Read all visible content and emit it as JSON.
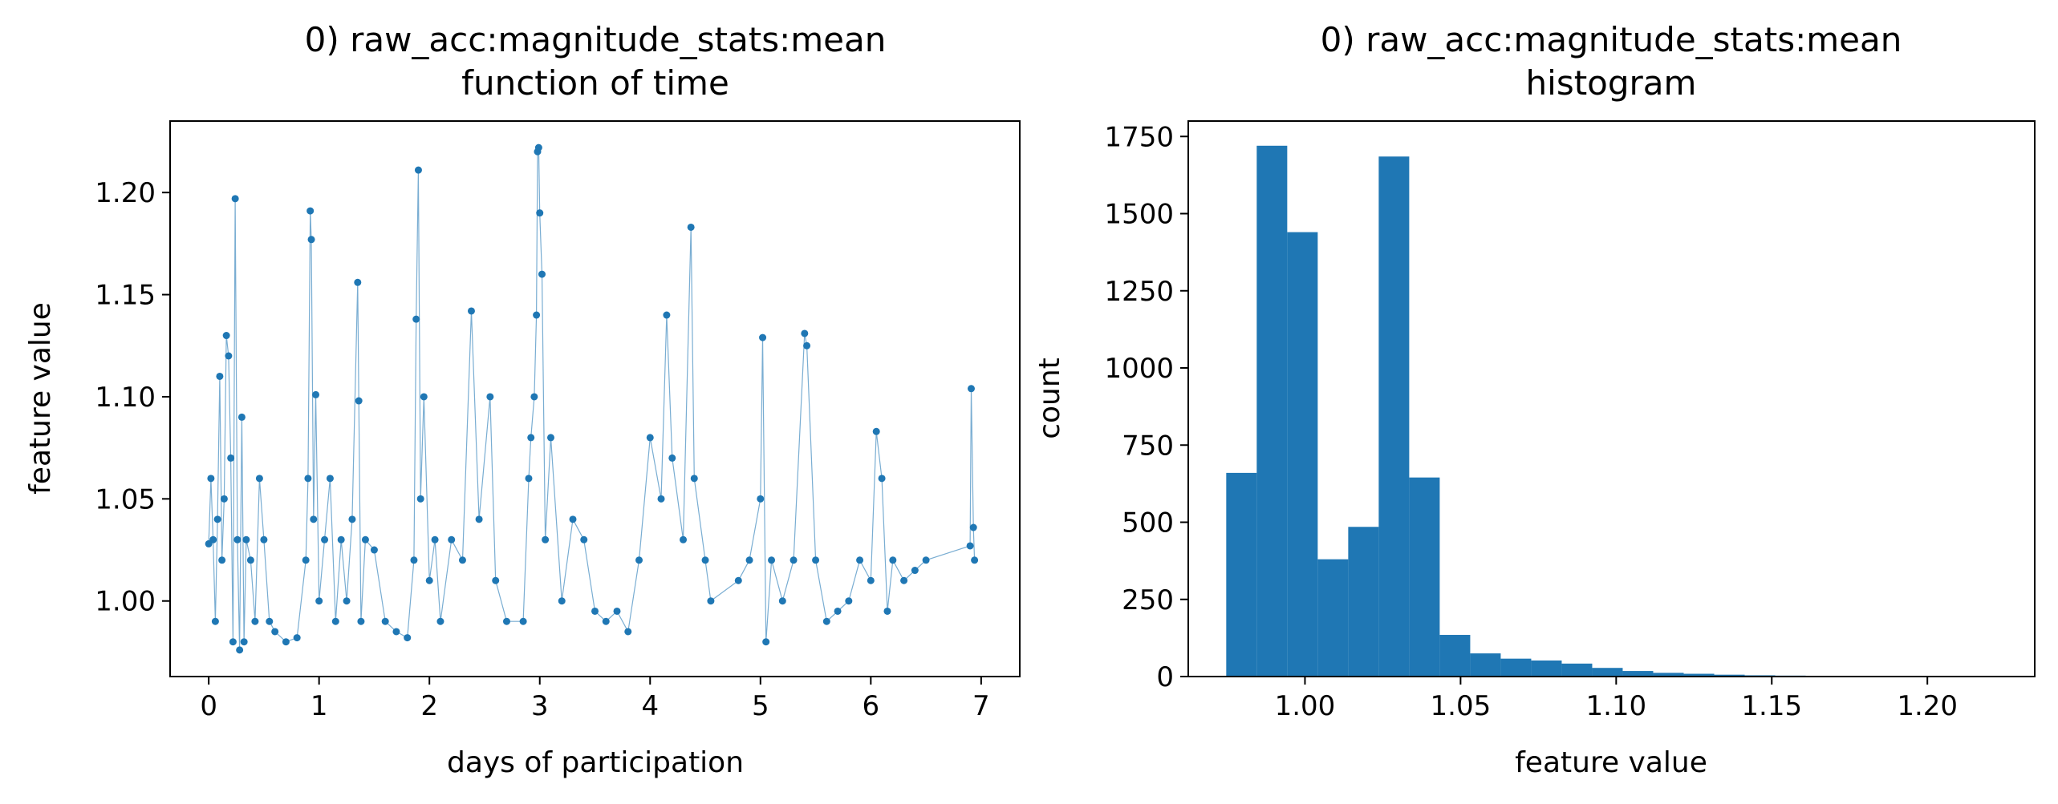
{
  "chart_data": [
    {
      "type": "scatter",
      "title": "0) raw_acc:magnitude_stats:mean",
      "subtitle": "function of time",
      "xlabel": "days of participation",
      "ylabel": "feature value",
      "xlim": [
        -0.35,
        7.35
      ],
      "ylim": [
        0.963,
        1.235
      ],
      "xticks": [
        0,
        1,
        2,
        3,
        4,
        5,
        6,
        7
      ],
      "xtick_labels": [
        "0",
        "1",
        "2",
        "3",
        "4",
        "5",
        "6",
        "7"
      ],
      "yticks": [
        1.0,
        1.05,
        1.1,
        1.15,
        1.2
      ],
      "ytick_labels": [
        "1.00",
        "1.05",
        "1.10",
        "1.15",
        "1.20"
      ],
      "color": "#1f77b4",
      "grid": false,
      "series": [
        {
          "style": "markers with thin connecting line",
          "points": [
            [
              0.0,
              1.028
            ],
            [
              0.02,
              1.06
            ],
            [
              0.04,
              1.03
            ],
            [
              0.06,
              0.99
            ],
            [
              0.08,
              1.04
            ],
            [
              0.1,
              1.11
            ],
            [
              0.12,
              1.02
            ],
            [
              0.14,
              1.05
            ],
            [
              0.16,
              1.13
            ],
            [
              0.18,
              1.12
            ],
            [
              0.2,
              1.07
            ],
            [
              0.22,
              0.98
            ],
            [
              0.24,
              1.197
            ],
            [
              0.26,
              1.03
            ],
            [
              0.28,
              0.976
            ],
            [
              0.3,
              1.09
            ],
            [
              0.32,
              0.98
            ],
            [
              0.34,
              1.03
            ],
            [
              0.38,
              1.02
            ],
            [
              0.42,
              0.99
            ],
            [
              0.46,
              1.06
            ],
            [
              0.5,
              1.03
            ],
            [
              0.55,
              0.99
            ],
            [
              0.6,
              0.985
            ],
            [
              0.7,
              0.98
            ],
            [
              0.8,
              0.982
            ],
            [
              0.88,
              1.02
            ],
            [
              0.9,
              1.06
            ],
            [
              0.92,
              1.191
            ],
            [
              0.93,
              1.177
            ],
            [
              0.95,
              1.04
            ],
            [
              0.97,
              1.101
            ],
            [
              1.0,
              1.0
            ],
            [
              1.05,
              1.03
            ],
            [
              1.1,
              1.06
            ],
            [
              1.15,
              0.99
            ],
            [
              1.2,
              1.03
            ],
            [
              1.25,
              1.0
            ],
            [
              1.3,
              1.04
            ],
            [
              1.35,
              1.156
            ],
            [
              1.36,
              1.098
            ],
            [
              1.38,
              0.99
            ],
            [
              1.42,
              1.03
            ],
            [
              1.5,
              1.025
            ],
            [
              1.6,
              0.99
            ],
            [
              1.7,
              0.985
            ],
            [
              1.8,
              0.982
            ],
            [
              1.86,
              1.02
            ],
            [
              1.88,
              1.138
            ],
            [
              1.9,
              1.211
            ],
            [
              1.92,
              1.05
            ],
            [
              1.95,
              1.1
            ],
            [
              2.0,
              1.01
            ],
            [
              2.05,
              1.03
            ],
            [
              2.1,
              0.99
            ],
            [
              2.2,
              1.03
            ],
            [
              2.3,
              1.02
            ],
            [
              2.38,
              1.142
            ],
            [
              2.45,
              1.04
            ],
            [
              2.55,
              1.1
            ],
            [
              2.6,
              1.01
            ],
            [
              2.7,
              0.99
            ],
            [
              2.85,
              0.99
            ],
            [
              2.9,
              1.06
            ],
            [
              2.92,
              1.08
            ],
            [
              2.95,
              1.1
            ],
            [
              2.97,
              1.14
            ],
            [
              2.98,
              1.22
            ],
            [
              2.99,
              1.222
            ],
            [
              3.0,
              1.19
            ],
            [
              3.02,
              1.16
            ],
            [
              3.05,
              1.03
            ],
            [
              3.1,
              1.08
            ],
            [
              3.2,
              1.0
            ],
            [
              3.3,
              1.04
            ],
            [
              3.4,
              1.03
            ],
            [
              3.5,
              0.995
            ],
            [
              3.6,
              0.99
            ],
            [
              3.7,
              0.995
            ],
            [
              3.8,
              0.985
            ],
            [
              3.9,
              1.02
            ],
            [
              4.0,
              1.08
            ],
            [
              4.1,
              1.05
            ],
            [
              4.15,
              1.14
            ],
            [
              4.2,
              1.07
            ],
            [
              4.3,
              1.03
            ],
            [
              4.37,
              1.183
            ],
            [
              4.4,
              1.06
            ],
            [
              4.5,
              1.02
            ],
            [
              4.55,
              1.0
            ],
            [
              4.8,
              1.01
            ],
            [
              4.9,
              1.02
            ],
            [
              5.0,
              1.05
            ],
            [
              5.02,
              1.129
            ],
            [
              5.05,
              0.98
            ],
            [
              5.1,
              1.02
            ],
            [
              5.2,
              1.0
            ],
            [
              5.3,
              1.02
            ],
            [
              5.4,
              1.131
            ],
            [
              5.42,
              1.125
            ],
            [
              5.5,
              1.02
            ],
            [
              5.6,
              0.99
            ],
            [
              5.7,
              0.995
            ],
            [
              5.8,
              1.0
            ],
            [
              5.9,
              1.02
            ],
            [
              6.0,
              1.01
            ],
            [
              6.05,
              1.083
            ],
            [
              6.1,
              1.06
            ],
            [
              6.15,
              0.995
            ],
            [
              6.2,
              1.02
            ],
            [
              6.3,
              1.01
            ],
            [
              6.4,
              1.015
            ],
            [
              6.5,
              1.02
            ],
            [
              6.9,
              1.027
            ],
            [
              6.91,
              1.104
            ],
            [
              6.93,
              1.036
            ],
            [
              6.94,
              1.02
            ]
          ]
        }
      ]
    },
    {
      "type": "bar",
      "title": "0) raw_acc:magnitude_stats:mean",
      "subtitle": "histogram",
      "xlabel": "feature value",
      "ylabel": "count",
      "xlim": [
        0.9625,
        1.2345
      ],
      "ylim": [
        0,
        1800
      ],
      "xticks": [
        1.0,
        1.05,
        1.1,
        1.15,
        1.2
      ],
      "xtick_labels": [
        "1.00",
        "1.05",
        "1.10",
        "1.15",
        "1.20"
      ],
      "yticks": [
        0,
        250,
        500,
        750,
        1000,
        1250,
        1500,
        1750
      ],
      "ytick_labels": [
        "0",
        "250",
        "500",
        "750",
        "1000",
        "1250",
        "1500",
        "1750"
      ],
      "color": "#1f77b4",
      "grid": false,
      "bin_edges": [
        0.9747,
        0.9845,
        0.9943,
        1.0041,
        1.0139,
        1.0237,
        1.0335,
        1.0433,
        1.0531,
        1.0629,
        1.0727,
        1.0825,
        1.0923,
        1.1021,
        1.1119,
        1.1217,
        1.1315,
        1.1413,
        1.1511,
        1.1609,
        1.1707,
        1.1805,
        1.1903,
        1.2001,
        1.2099,
        1.2197
      ],
      "values": [
        660,
        1720,
        1440,
        380,
        485,
        1685,
        645,
        135,
        75,
        58,
        52,
        42,
        28,
        18,
        12,
        9,
        6,
        4,
        3,
        2,
        2,
        2,
        2,
        1,
        1
      ]
    }
  ]
}
